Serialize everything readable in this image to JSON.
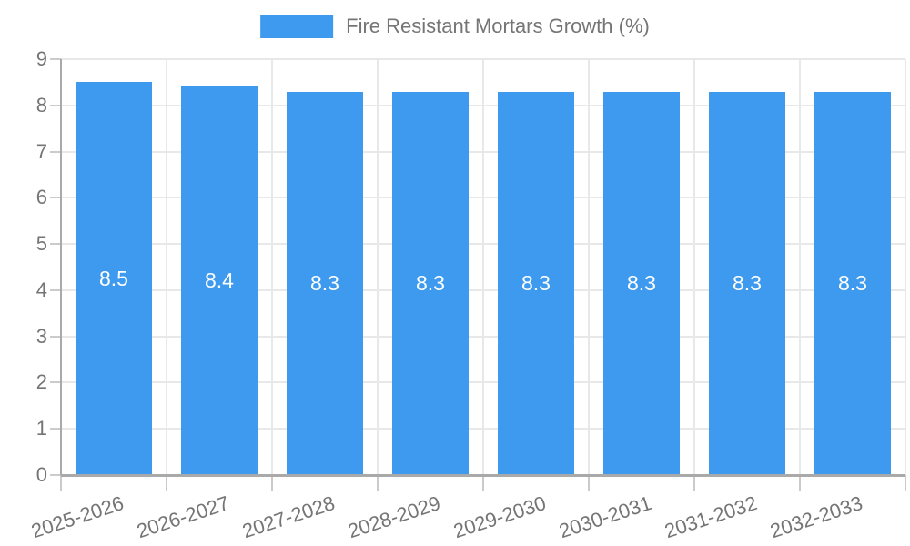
{
  "legend": {
    "label": "Fire Resistant Mortars Growth (%)"
  },
  "chart_data": {
    "type": "bar",
    "title": "Fire Resistant Mortars Growth (%)",
    "categories": [
      "2025-2026",
      "2026-2027",
      "2027-2028",
      "2028-2029",
      "2029-2030",
      "2030-2031",
      "2031-2032",
      "2032-2033"
    ],
    "values": [
      8.5,
      8.4,
      8.3,
      8.3,
      8.3,
      8.3,
      8.3,
      8.3
    ],
    "value_labels": [
      "8.5",
      "8.4",
      "8.3",
      "8.3",
      "8.3",
      "8.3",
      "8.3",
      "8.3"
    ],
    "xlabel": "",
    "ylabel": "",
    "ylim": [
      0,
      9
    ],
    "yticks": [
      0,
      1,
      2,
      3,
      4,
      5,
      6,
      7,
      8,
      9
    ],
    "grid": true,
    "legend_position": "top-center",
    "x_tick_rotation_deg": -18,
    "bar_value_labels_inside": true
  },
  "colors": {
    "bar": "#3D9AEF",
    "bar_label": "#FFFFFF",
    "axis_line": "#A9A9A9",
    "tick": "#CBCBCB",
    "gridline": "#E8E8E8",
    "text": "#757575",
    "background": "#FFFFFF"
  }
}
